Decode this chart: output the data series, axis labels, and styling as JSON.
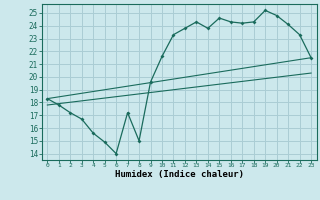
{
  "xlabel": "Humidex (Indice chaleur)",
  "bg_color": "#cce8ec",
  "grid_color": "#aacdd4",
  "line_color": "#1a6b5c",
  "xlim": [
    -0.5,
    23.5
  ],
  "ylim": [
    13.5,
    25.7
  ],
  "xticks": [
    0,
    1,
    2,
    3,
    4,
    5,
    6,
    7,
    8,
    9,
    10,
    11,
    12,
    13,
    14,
    15,
    16,
    17,
    18,
    19,
    20,
    21,
    22,
    23
  ],
  "yticks": [
    14,
    15,
    16,
    17,
    18,
    19,
    20,
    21,
    22,
    23,
    24,
    25
  ],
  "line1_x": [
    0,
    1,
    2,
    3,
    4,
    5,
    6,
    7,
    8,
    9,
    10,
    11,
    12,
    13,
    14,
    15,
    16,
    17,
    18,
    19,
    20,
    21,
    22,
    23
  ],
  "line1_y": [
    18.3,
    17.8,
    17.2,
    16.7,
    15.6,
    14.9,
    14.0,
    17.2,
    15.0,
    19.6,
    21.6,
    23.3,
    23.8,
    24.3,
    23.8,
    24.6,
    24.3,
    24.2,
    24.3,
    25.2,
    24.8,
    24.1,
    23.3,
    21.5
  ],
  "line2_x": [
    0,
    23
  ],
  "line2_y": [
    18.3,
    21.5
  ],
  "line3_x": [
    0,
    23
  ],
  "line3_y": [
    17.8,
    20.3
  ]
}
